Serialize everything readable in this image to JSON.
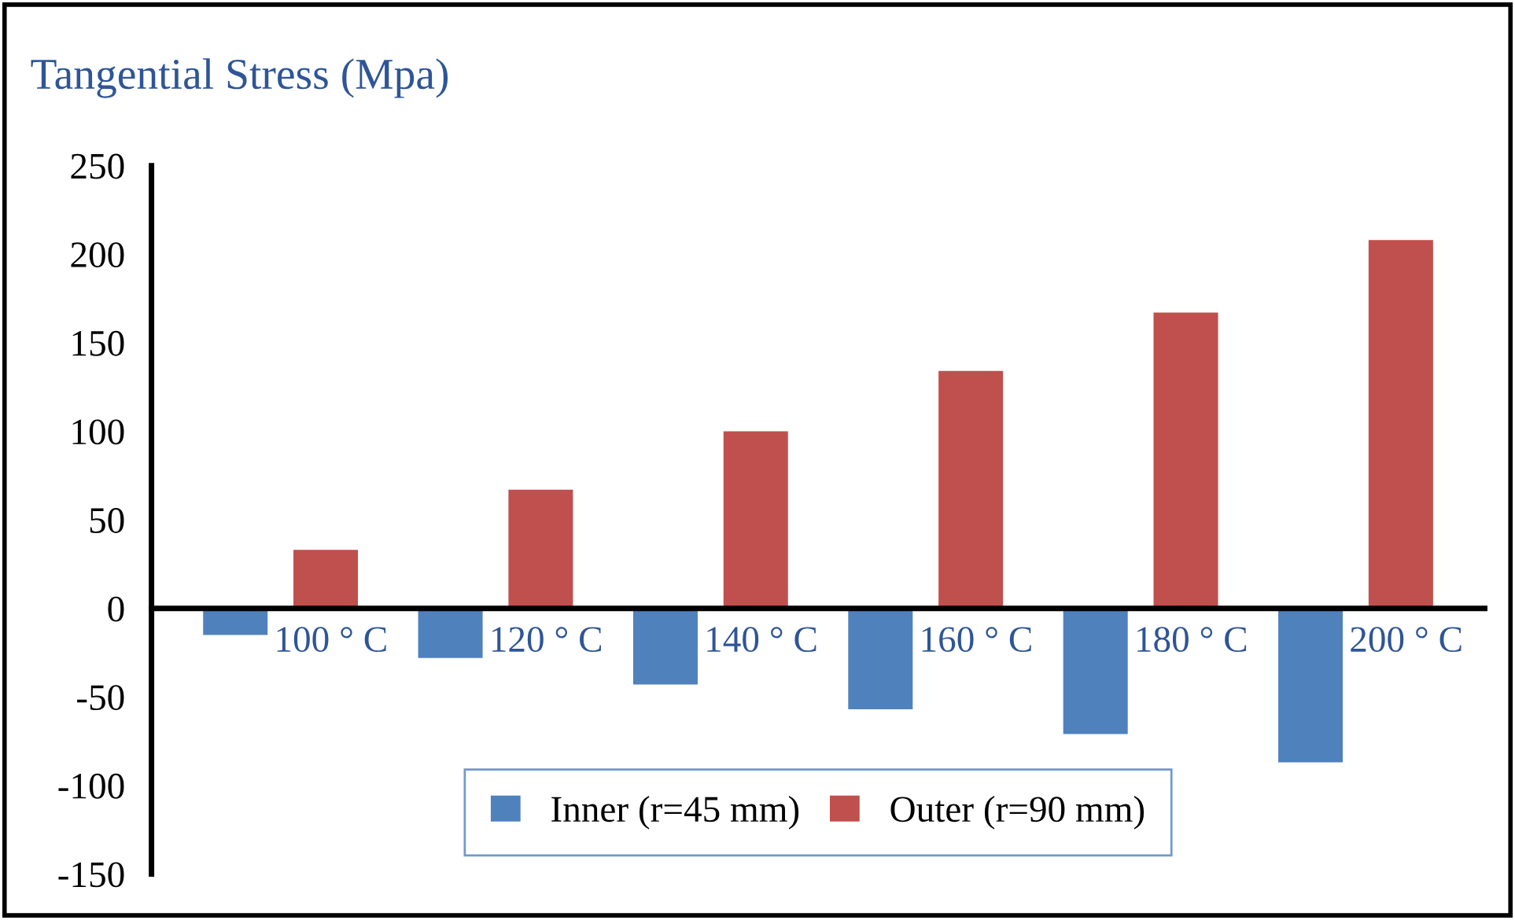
{
  "chart_data": {
    "type": "bar",
    "title": "Tangential Stress (Mpa)",
    "categories": [
      "100 ° C",
      "120 ° C",
      "140 ° C",
      "160 ° C",
      "180 ° C",
      "200 ° C"
    ],
    "series": [
      {
        "name": "Inner (r=45 mm)",
        "color": "#4f81bd",
        "values": [
          -15,
          -28,
          -43,
          -57,
          -71,
          -87
        ]
      },
      {
        "name": "Outer (r=90 mm)",
        "color": "#c0504d",
        "values": [
          33,
          67,
          100,
          134,
          167,
          208
        ]
      }
    ],
    "ylim": [
      -150,
      250
    ],
    "yticks": [
      -150,
      -100,
      -50,
      0,
      50,
      100,
      150,
      200,
      250
    ],
    "grid": false,
    "legend": "bottom"
  }
}
